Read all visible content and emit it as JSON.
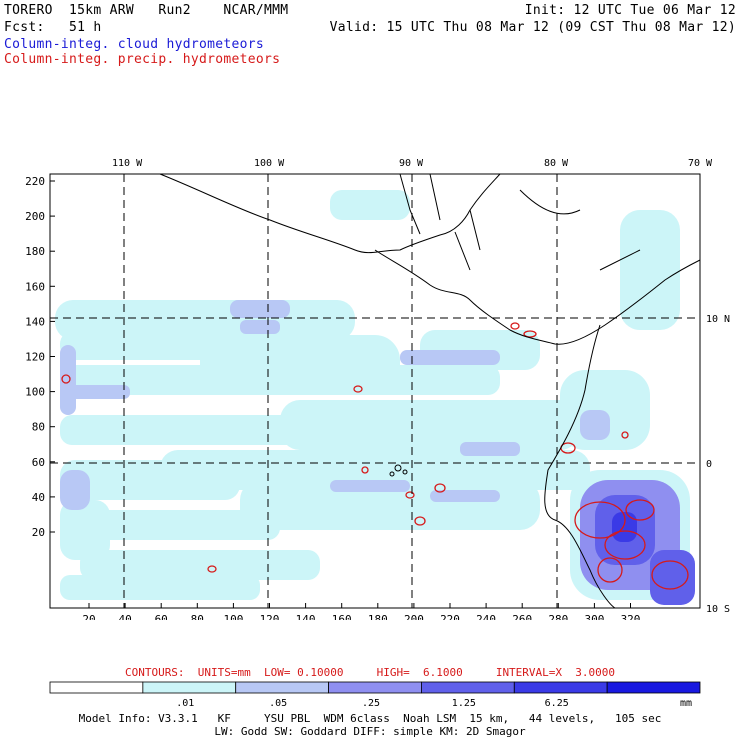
{
  "header": {
    "model": "TORERO  15km ARW   Run2    NCAR/MMM",
    "init": "Init: 12 UTC Tue 06 Mar 12",
    "fcst": "Fcst:   51 h",
    "valid": "Valid: 15 UTC Thu 08 Mar 12 (09 CST Thu 08 Mar 12)",
    "field1": "Column-integ. cloud hydrometeors",
    "field2": "Column-integ. precip. hydrometeors"
  },
  "axes": {
    "y_ticks": [
      "220",
      "200",
      "180",
      "160",
      "140",
      "120",
      "100",
      "80",
      "60",
      "40",
      "20"
    ],
    "x_ticks": [
      "20",
      "40",
      "60",
      "80",
      "100",
      "120",
      "140",
      "160",
      "180",
      "200",
      "220",
      "240",
      "260",
      "280",
      "300",
      "320"
    ],
    "lon_labels": [
      "110 W",
      "100 W",
      "90 W",
      "80 W",
      "70 W"
    ],
    "lat_labels": [
      "10 N",
      "0",
      "10 S"
    ]
  },
  "contours_text": "CONTOURS:  UNITS=mm  LOW= 0.10000     HIGH=  6.1000     INTERVAL=X  3.0000",
  "colorbar": {
    "labels": [
      ".01",
      ".05",
      ".25",
      "1.25",
      "6.25"
    ],
    "unit": "mm",
    "colors": [
      "#ffffff",
      "#ccf5f8",
      "#b8c8f5",
      "#8f8ff0",
      "#6060ea",
      "#3a3ae6",
      "#1818e0"
    ]
  },
  "footer": {
    "line1": "Model Info: V3.3.1   KF     YSU PBL  WDM 6class  Noah LSM  15 km,   44 levels,   105 sec",
    "line2": "LW: Godd SW: Goddard DIFF: simple KM: 2D Smagor"
  },
  "colors": {
    "cloud_label": "#1a1ad6",
    "precip": "#d61a1a"
  }
}
